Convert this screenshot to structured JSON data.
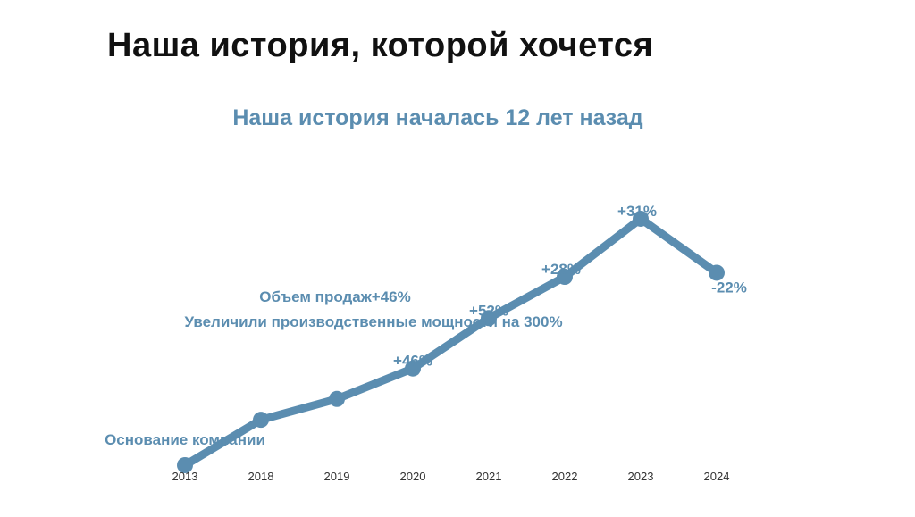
{
  "slide": {
    "title": "Наша история, которой хочется"
  },
  "chart_data": {
    "type": "line",
    "title": "Наша история началась 12 лет назад",
    "xlabel": "",
    "ylabel": "",
    "categories": [
      "2013",
      "2018",
      "2019",
      "2020",
      "2021",
      "2022",
      "2023",
      "2024"
    ],
    "series": [
      {
        "values": [
          0,
          100,
          146,
          213,
          324,
          415,
          543,
          424
        ],
        "data_labels": [
          "",
          "",
          "",
          "+46%",
          "+52%",
          "+28%",
          "+31%",
          "-22%"
        ]
      }
    ],
    "annotations": [
      {
        "category": "2019",
        "text": "Объем продаж+46%"
      },
      {
        "category": "2018",
        "text": "Увеличили производственные мощности на 300%"
      },
      {
        "category": "2013",
        "text": "Основание компании"
      }
    ],
    "ylim": [
      0,
      600
    ],
    "grid": false,
    "legend": "none",
    "colors": {
      "line": "#5b8db0",
      "title": "#5b8db0",
      "labels": "#5b8db0",
      "ticks": "#333333"
    }
  }
}
